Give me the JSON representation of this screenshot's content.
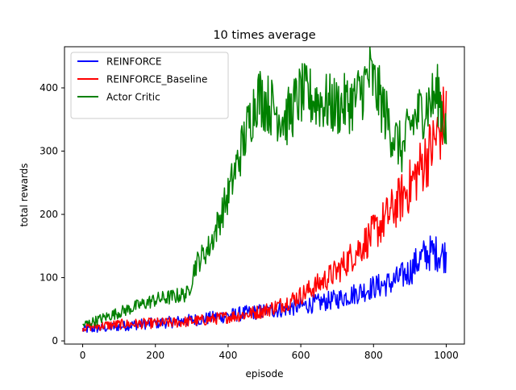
{
  "chart_data": {
    "type": "line",
    "title": "10 times average",
    "xlabel": "episode",
    "ylabel": "total rewards",
    "xlim": [
      -50,
      1050
    ],
    "ylim": [
      -5,
      465
    ],
    "xticks": [
      0,
      200,
      400,
      600,
      800,
      1000
    ],
    "yticks": [
      0,
      100,
      200,
      300,
      400
    ],
    "grid": false,
    "legend_position": "top-left",
    "series": [
      {
        "name": "REINFORCE",
        "color": "#0000ff",
        "x": [
          0,
          50,
          100,
          150,
          200,
          250,
          300,
          350,
          400,
          450,
          500,
          550,
          600,
          650,
          700,
          750,
          800,
          850,
          900,
          920,
          940,
          960,
          980,
          1000
        ],
        "y": [
          18,
          20,
          23,
          26,
          28,
          30,
          33,
          36,
          40,
          44,
          47,
          50,
          55,
          60,
          66,
          75,
          85,
          92,
          110,
          125,
          135,
          140,
          138,
          135
        ]
      },
      {
        "name": "REINFORCE_Baseline",
        "color": "#ff0000",
        "x": [
          0,
          50,
          100,
          150,
          200,
          250,
          300,
          350,
          400,
          450,
          500,
          550,
          600,
          650,
          700,
          750,
          800,
          850,
          900,
          920,
          940,
          960,
          980,
          1000
        ],
        "y": [
          22,
          24,
          26,
          27,
          28,
          29,
          31,
          34,
          38,
          42,
          48,
          58,
          72,
          90,
          110,
          140,
          170,
          205,
          245,
          265,
          285,
          305,
          330,
          360
        ]
      },
      {
        "name": "Actor Critic",
        "color": "#008000",
        "x": [
          0,
          50,
          100,
          150,
          200,
          250,
          290,
          310,
          350,
          400,
          450,
          480,
          520,
          560,
          600,
          650,
          700,
          750,
          790,
          820,
          850,
          880,
          900,
          940,
          980,
          1000
        ],
        "y": [
          25,
          35,
          45,
          55,
          65,
          70,
          75,
          120,
          150,
          230,
          330,
          390,
          370,
          350,
          390,
          380,
          370,
          380,
          420,
          380,
          330,
          300,
          340,
          370,
          390,
          330
        ]
      }
    ]
  }
}
